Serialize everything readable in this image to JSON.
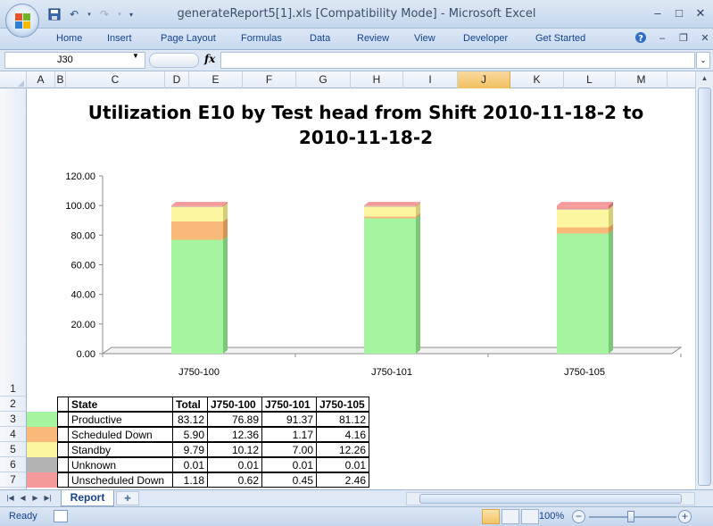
{
  "window": {
    "title": "generateReport5[1].xls  [Compatibility Mode]  -  Microsoft Excel",
    "min": "–",
    "max": "□",
    "close": "✕"
  },
  "ribbon": {
    "tabs": [
      "Home",
      "Insert",
      "Page Layout",
      "Formulas",
      "Data",
      "Review",
      "View",
      "Developer",
      "Get Started"
    ]
  },
  "formula_bar": {
    "name_box": "J30",
    "fx": "fx",
    "content": ""
  },
  "columns": [
    "A",
    "B",
    "C",
    "D",
    "E",
    "F",
    "G",
    "H",
    "I",
    "J",
    "K",
    "L",
    "M"
  ],
  "selected_column": "J",
  "rows": [
    "1",
    "2",
    "3",
    "4",
    "5",
    "6",
    "7"
  ],
  "colors": {
    "productive": "#a5f5a0",
    "scheduled_down": "#f8b979",
    "standby": "#fdf6a0",
    "unknown": "#b3b3b3",
    "unscheduled_down": "#f59a9a",
    "selected_header": "#f1c15f"
  },
  "chart_data": {
    "type": "bar",
    "stacked": true,
    "title": "Utilization E10 by Test head from Shift 2010-11-18-2  to 2010-11-18-2",
    "categories": [
      "J750-100",
      "J750-101",
      "J750-105"
    ],
    "series": [
      {
        "name": "Productive",
        "values": [
          76.89,
          91.37,
          81.12
        ]
      },
      {
        "name": "Scheduled Down",
        "values": [
          12.36,
          1.17,
          4.16
        ]
      },
      {
        "name": "Standby",
        "values": [
          10.12,
          7.0,
          12.26
        ]
      },
      {
        "name": "Unknown",
        "values": [
          0.01,
          0.01,
          0.01
        ]
      },
      {
        "name": "Unscheduled Down",
        "values": [
          0.62,
          0.45,
          2.46
        ]
      }
    ],
    "ylim": [
      0,
      120
    ],
    "yticks": [
      "0.00",
      "20.00",
      "40.00",
      "60.00",
      "80.00",
      "100.00",
      "120.00"
    ],
    "xlabel": "",
    "ylabel": "",
    "legend": "none"
  },
  "table": {
    "headers": [
      "State",
      "Total",
      "J750-100",
      "J750-101",
      "J750-105"
    ],
    "rows": [
      {
        "state": "Productive",
        "color_key": "productive",
        "values": [
          "83.12",
          "76.89",
          "91.37",
          "81.12"
        ]
      },
      {
        "state": "Scheduled Down",
        "color_key": "scheduled_down",
        "values": [
          "5.90",
          "12.36",
          "1.17",
          "4.16"
        ]
      },
      {
        "state": "Standby",
        "color_key": "standby",
        "values": [
          "9.79",
          "10.12",
          "7.00",
          "12.26"
        ]
      },
      {
        "state": "Unknown",
        "color_key": "unknown",
        "values": [
          "0.01",
          "0.01",
          "0.01",
          "0.01"
        ]
      },
      {
        "state": "Unscheduled Down",
        "color_key": "unscheduled_down",
        "values": [
          "1.18",
          "0.62",
          "0.45",
          "2.46"
        ]
      }
    ]
  },
  "sheet": {
    "tab": "Report"
  },
  "status": {
    "ready": "Ready",
    "zoom": "100%",
    "zoom_minus": "−",
    "zoom_plus": "+"
  }
}
